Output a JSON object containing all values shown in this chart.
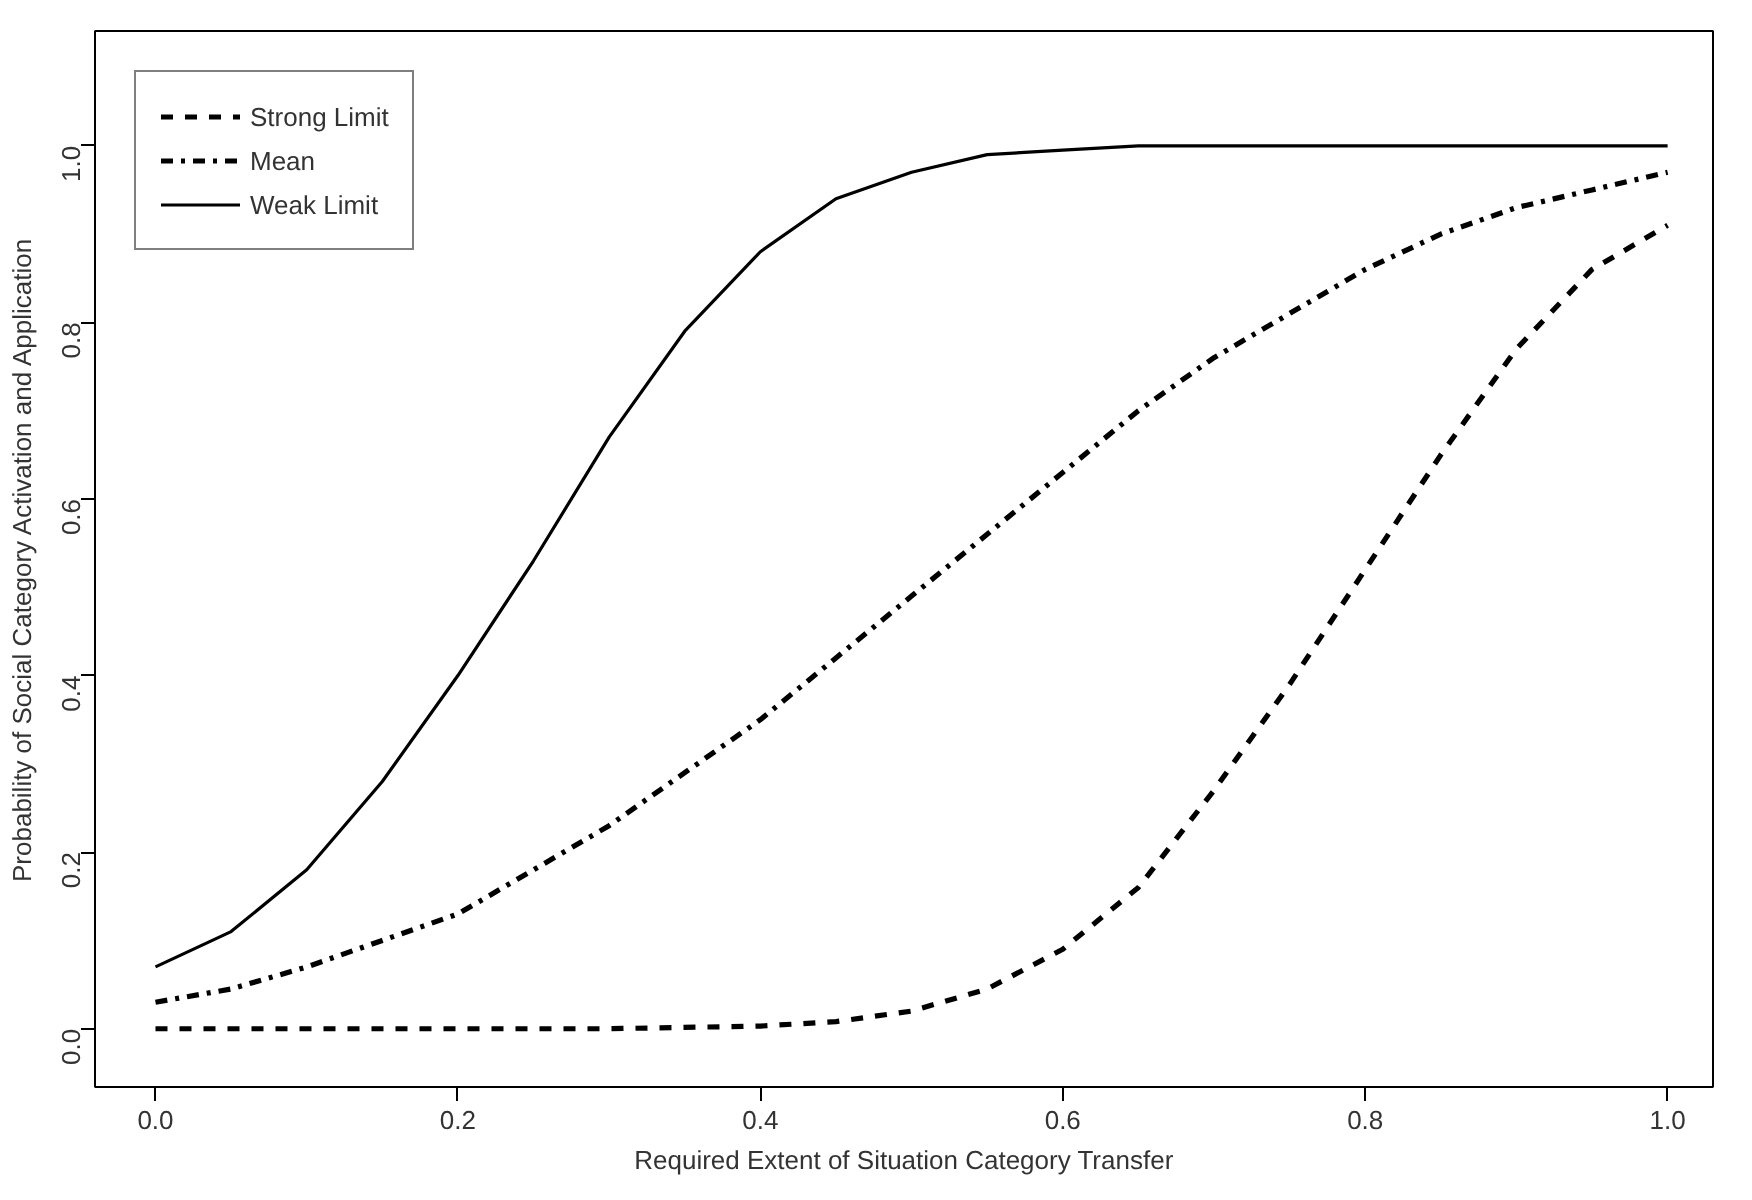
{
  "chart_data": {
    "type": "line",
    "xlabel": "Required Extent of Situation Category Transfer",
    "ylabel": "Probability of Social Category Activation and Application",
    "xlim": [
      -0.04,
      1.03
    ],
    "ylim": [
      -0.066,
      1.13
    ],
    "xticks": [
      {
        "value": 0,
        "label": "0.0"
      },
      0.2,
      0.4,
      0.6,
      0.8,
      {
        "value": 1,
        "label": "1.0"
      }
    ],
    "yticks": [
      {
        "value": 0,
        "label": "0.0"
      },
      0.2,
      0.4,
      0.6,
      0.8,
      {
        "value": 1,
        "label": "1.0"
      }
    ],
    "grid": false,
    "legend": "top left",
    "marker": "none",
    "series": [
      {
        "name": "Strong Limit",
        "color": "#000000",
        "line_style": "dashed",
        "x": [
          0,
          0.1,
          0.2,
          0.3,
          0.4,
          0.45,
          0.5,
          0.55,
          0.6,
          0.65,
          0.7,
          0.75,
          0.8,
          0.85,
          0.9,
          0.95,
          1.0
        ],
        "values": [
          0,
          0,
          0,
          0,
          0.003,
          0.008,
          0.02,
          0.045,
          0.09,
          0.16,
          0.27,
          0.39,
          0.52,
          0.65,
          0.77,
          0.86,
          0.91
        ]
      },
      {
        "name": "Mean",
        "color": "#000000",
        "line_style": "dashdot",
        "x": [
          0,
          0.05,
          0.1,
          0.15,
          0.2,
          0.25,
          0.3,
          0.35,
          0.4,
          0.45,
          0.5,
          0.55,
          0.6,
          0.65,
          0.7,
          0.75,
          0.8,
          0.85,
          0.9,
          0.95,
          1.0
        ],
        "values": [
          0.03,
          0.045,
          0.07,
          0.1,
          0.13,
          0.18,
          0.23,
          0.29,
          0.35,
          0.42,
          0.49,
          0.56,
          0.63,
          0.7,
          0.76,
          0.81,
          0.86,
          0.9,
          0.93,
          0.95,
          0.97
        ]
      },
      {
        "name": "Weak Limit",
        "color": "#000000",
        "line_style": "solid",
        "x": [
          0,
          0.05,
          0.1,
          0.15,
          0.2,
          0.25,
          0.3,
          0.35,
          0.4,
          0.45,
          0.5,
          0.55,
          0.6,
          0.65,
          0.7,
          0.8,
          0.9,
          1.0
        ],
        "values": [
          0.07,
          0.11,
          0.18,
          0.28,
          0.4,
          0.53,
          0.67,
          0.79,
          0.88,
          0.94,
          0.97,
          0.99,
          0.995,
          1.0,
          1.0,
          1.0,
          1.0,
          1.0
        ]
      }
    ]
  }
}
